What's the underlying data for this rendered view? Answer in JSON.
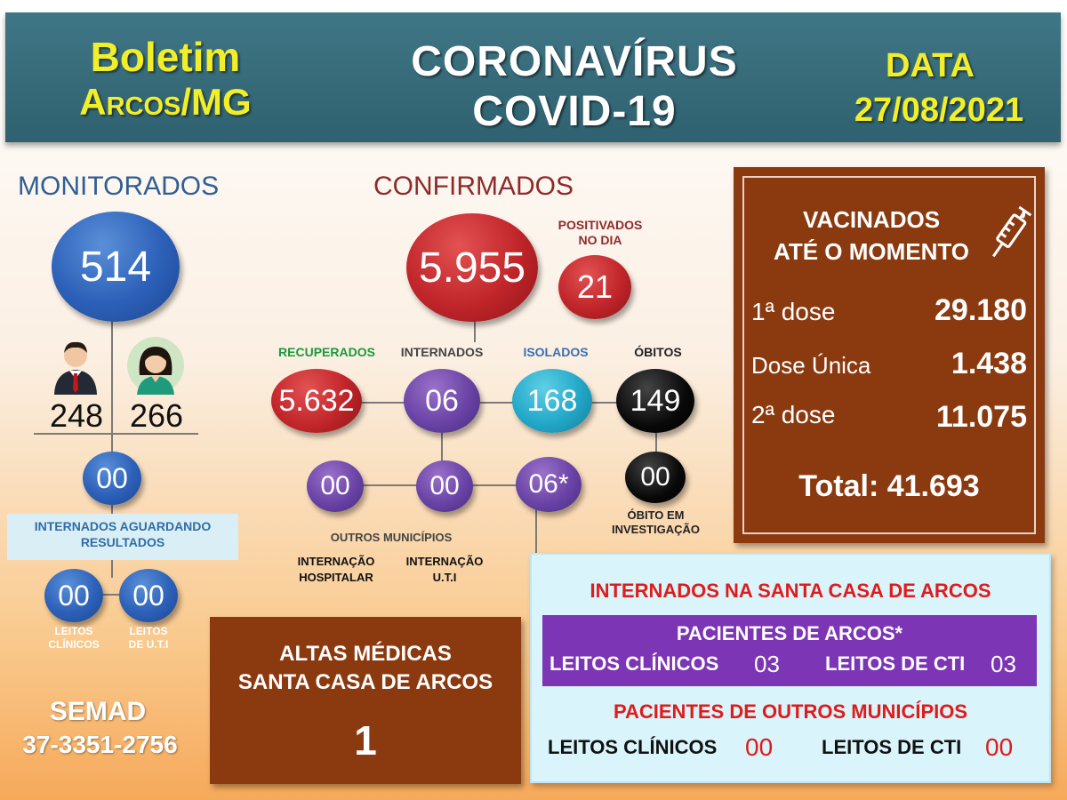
{
  "header": {
    "boletim": "Boletim",
    "city": "Arcos/MG",
    "title_line1": "CORONAVÍRUS",
    "title_line2": "COVID-19",
    "date_label": "DATA",
    "date_value": "27/08/2021"
  },
  "monitorados": {
    "title": "MONITORADOS",
    "total": "514",
    "male": "248",
    "female": "266",
    "internados_aguardando": "00",
    "internados_aguardando_label_1": "INTERNADOS AGUARDANDO",
    "internados_aguardando_label_2": "RESULTADOS",
    "leitos_clinicos_value": "00",
    "leitos_uti_value": "00",
    "leitos_clinicos_label_1": "LEITOS",
    "leitos_clinicos_label_2": "CLÍNICOS",
    "leitos_uti_label_1": "LEITOS",
    "leitos_uti_label_2": "DE  U.T.I"
  },
  "semad": {
    "name": "SEMAD",
    "phone": "37-3351-2756"
  },
  "confirmados": {
    "title": "CONFIRMADOS",
    "total": "5.955",
    "positivados_label_1": "POSITIVADOS",
    "positivados_label_2": "NO DIA",
    "positivados_value": "21",
    "recuperados_label": "RECUPERADOS",
    "recuperados_value": "5.632",
    "internados_label": "INTERNADOS",
    "internados_value": "06",
    "isolados_label": "ISOLADOS",
    "isolados_value": "168",
    "obitos_label": "ÓBITOS",
    "obitos_value": "149",
    "obito_investigacao_value": "00",
    "obito_investigacao_label_1": "ÓBITO EM",
    "obito_investigacao_label_2": "INVESTIGAÇÃO",
    "outros_municipios_value": "00",
    "internacao_hospitalar_value": "00",
    "internacao_uti_value": "06*",
    "outros_municipios_label": "OUTROS MUNICÍPIOS",
    "internacao_hospitalar_label_1": "INTERNAÇÃO",
    "internacao_hospitalar_label_2": "HOSPITALAR",
    "internacao_uti_label_1": "INTERNAÇÃO",
    "internacao_uti_label_2": "U.T.I"
  },
  "vacinados": {
    "title_1": "VACINADOS",
    "title_2": "ATÉ O MOMENTO",
    "dose1_label": "1ª dose",
    "dose1_value": "29.180",
    "dose_unica_label": "Dose Única",
    "dose_unica_value": "1.438",
    "dose2_label": "2ª dose",
    "dose2_value": "11.075",
    "total_label": "Total: 41.693",
    "icon": "syringe-icon"
  },
  "altas": {
    "title_1": "ALTAS MÉDICAS",
    "title_2": "SANTA CASA DE ARCOS",
    "value": "1"
  },
  "santa_casa": {
    "title": "INTERNADOS NA SANTA CASA DE ARCOS",
    "arcos_title": "PACIENTES DE ARCOS*",
    "arcos_leitos_clinicos_label": "LEITOS CLÍNICOS",
    "arcos_leitos_clinicos_value": "03",
    "arcos_leitos_cti_label": "LEITOS DE CTI",
    "arcos_leitos_cti_value": "03",
    "outros_title": "PACIENTES DE OUTROS MUNICÍPIOS",
    "outros_leitos_clinicos_label": "LEITOS CLÍNICOS",
    "outros_leitos_clinicos_value": "00",
    "outros_leitos_cti_label": "LEITOS DE CTI",
    "outros_leitos_cti_value": "00"
  },
  "colors": {
    "header_bg": "#3f7685",
    "header_yellow": "#f2ef2a",
    "brown_panel": "#8b3a10",
    "recuperados_green": "#1a9a3a",
    "isolados_blue": "#3a6fb0",
    "confirmados_red": "#8f2a2a",
    "santa_red": "#e01b1b"
  }
}
